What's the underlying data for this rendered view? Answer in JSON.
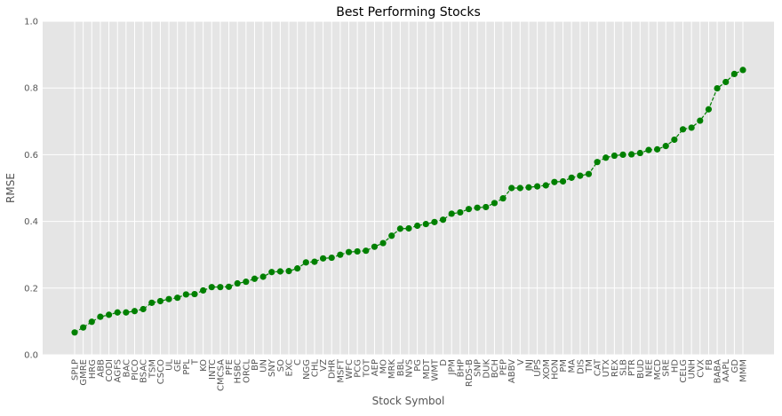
{
  "chart_data": {
    "type": "line",
    "title": "Best Performing Stocks",
    "xlabel": "Stock Symbol",
    "ylabel": "RMSE",
    "ylim": [
      0,
      1.0
    ],
    "yticks": [
      "0.0",
      "0.2",
      "0.4",
      "0.6",
      "0.8",
      "1.0"
    ],
    "grid": true,
    "line_style": "dashed",
    "marker": "circle",
    "color": "#008000",
    "background": "#e5e5e5",
    "categories": [
      "SPLP",
      "GMRE",
      "HRG",
      "ABB",
      "CODI",
      "AGFS",
      "BAC",
      "PICO",
      "BSAC",
      "TSM",
      "CSCO",
      "UL",
      "GE",
      "PPL",
      "T",
      "KO",
      "INTC",
      "CMCSA",
      "PFE",
      "HSBC",
      "ORCL",
      "BP",
      "UN",
      "SNY",
      "SO",
      "EXC",
      "C",
      "NGG",
      "CHL",
      "VZ",
      "DHR",
      "MSFT",
      "WFC",
      "PCG",
      "TOT",
      "AEP",
      "MO",
      "MRK",
      "BBL",
      "NVS",
      "PG",
      "MDT",
      "WMT",
      "D",
      "JPM",
      "BHP",
      "RDS-B",
      "SNP",
      "DUK",
      "BCH",
      "PEP",
      "ABBV",
      "V",
      "JNJ",
      "UPS",
      "XOM",
      "HON",
      "PM",
      "MA",
      "DIS",
      "TM",
      "CAT",
      "UTX",
      "REX",
      "SLB",
      "PTR",
      "BUD",
      "NEE",
      "MCD",
      "SRE",
      "HD",
      "CELG",
      "UNH",
      "CVX",
      "FB",
      "BABA",
      "AAPL",
      "GD",
      "MMM"
    ],
    "values": [
      0.067,
      0.082,
      0.099,
      0.114,
      0.12,
      0.127,
      0.127,
      0.131,
      0.137,
      0.156,
      0.161,
      0.167,
      0.171,
      0.181,
      0.182,
      0.193,
      0.203,
      0.203,
      0.204,
      0.214,
      0.219,
      0.228,
      0.234,
      0.248,
      0.25,
      0.251,
      0.259,
      0.277,
      0.279,
      0.289,
      0.291,
      0.3,
      0.308,
      0.31,
      0.312,
      0.324,
      0.335,
      0.357,
      0.378,
      0.379,
      0.387,
      0.392,
      0.398,
      0.405,
      0.423,
      0.427,
      0.437,
      0.441,
      0.443,
      0.455,
      0.469,
      0.5,
      0.5,
      0.502,
      0.505,
      0.508,
      0.518,
      0.52,
      0.531,
      0.537,
      0.542,
      0.578,
      0.591,
      0.597,
      0.6,
      0.601,
      0.605,
      0.614,
      0.616,
      0.626,
      0.645,
      0.676,
      0.681,
      0.702,
      0.736,
      0.799,
      0.818,
      0.842,
      0.854
    ]
  }
}
